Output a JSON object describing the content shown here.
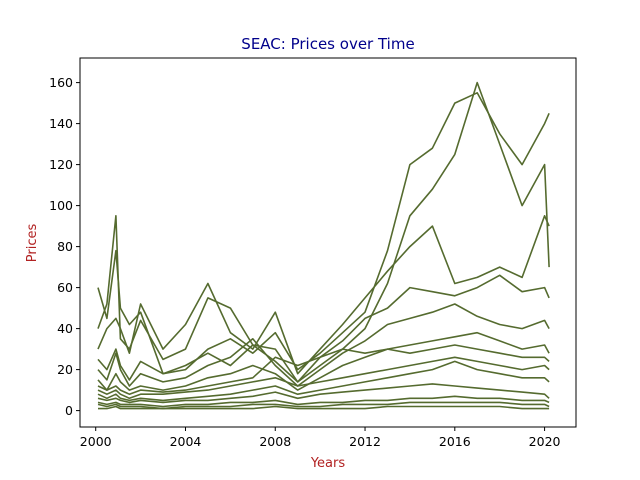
{
  "chart_data": {
    "type": "line",
    "title": "SEAC: Prices over Time",
    "xlabel": "Years",
    "ylabel": "Prices",
    "xlim": [
      1999.3,
      2021.4
    ],
    "ylim": [
      -8,
      172
    ],
    "x_ticks": [
      2000,
      2004,
      2008,
      2012,
      2016,
      2020
    ],
    "y_ticks": [
      0,
      20,
      40,
      60,
      80,
      100,
      120,
      140,
      160
    ],
    "grid": false,
    "legend": "none",
    "colors": {
      "line": "#556b2f",
      "title": "#00008b",
      "axis_label": "#b22222"
    },
    "series": [
      {
        "x": [
          2000.1,
          2000.5,
          2000.9,
          2001.1,
          2001.5,
          2002,
          2003,
          2004,
          2005,
          2006,
          2007,
          2008,
          2009,
          2010,
          2011,
          2012,
          2013,
          2014,
          2015,
          2016,
          2017,
          2018,
          2019,
          2020,
          2020.2
        ],
        "y": [
          60,
          45,
          78,
          50,
          42,
          48,
          18,
          20,
          30,
          35,
          28,
          38,
          20,
          28,
          38,
          48,
          78,
          120,
          128,
          150,
          155,
          135,
          120,
          140,
          145
        ]
      },
      {
        "x": [
          2000.1,
          2000.5,
          2000.9,
          2001.1,
          2001.5,
          2002,
          2003,
          2004,
          2005,
          2006,
          2007,
          2008,
          2009,
          2010,
          2011,
          2012,
          2013,
          2014,
          2015,
          2016,
          2017,
          2018,
          2019,
          2020,
          2020.2
        ],
        "y": [
          40,
          52,
          95,
          35,
          30,
          44,
          25,
          30,
          55,
          50,
          32,
          30,
          14,
          22,
          30,
          40,
          62,
          95,
          108,
          125,
          160,
          130,
          100,
          120,
          70
        ]
      },
      {
        "x": [
          2000.1,
          2000.5,
          2000.9,
          2001.1,
          2001.5,
          2002,
          2003,
          2004,
          2005,
          2006,
          2007,
          2008,
          2009,
          2010,
          2011,
          2012,
          2013,
          2014,
          2015,
          2016,
          2017,
          2018,
          2019,
          2020,
          2020.2
        ],
        "y": [
          30,
          40,
          45,
          40,
          28,
          52,
          30,
          42,
          62,
          38,
          30,
          48,
          18,
          30,
          42,
          55,
          68,
          80,
          90,
          62,
          65,
          70,
          65,
          95,
          90
        ]
      },
      {
        "x": [
          2000.1,
          2000.5,
          2000.9,
          2001.1,
          2001.5,
          2002,
          2003,
          2004,
          2005,
          2006,
          2007,
          2008,
          2009,
          2010,
          2011,
          2012,
          2013,
          2014,
          2015,
          2016,
          2017,
          2018,
          2019,
          2020,
          2020.2
        ],
        "y": [
          25,
          20,
          30,
          22,
          15,
          24,
          18,
          22,
          28,
          22,
          32,
          24,
          14,
          26,
          34,
          45,
          50,
          60,
          58,
          56,
          60,
          66,
          58,
          60,
          55
        ]
      },
      {
        "x": [
          2000.1,
          2000.5,
          2000.9,
          2001.1,
          2001.5,
          2002,
          2003,
          2004,
          2005,
          2006,
          2007,
          2008,
          2009,
          2010,
          2011,
          2012,
          2013,
          2014,
          2015,
          2016,
          2017,
          2018,
          2019,
          2020,
          2020.2
        ],
        "y": [
          20,
          15,
          28,
          20,
          12,
          18,
          14,
          16,
          22,
          26,
          35,
          22,
          12,
          20,
          28,
          34,
          42,
          45,
          48,
          52,
          46,
          42,
          40,
          44,
          40
        ]
      },
      {
        "x": [
          2000.1,
          2000.5,
          2000.9,
          2001.1,
          2001.5,
          2002,
          2003,
          2004,
          2005,
          2006,
          2007,
          2008,
          2009,
          2010,
          2011,
          2012,
          2013,
          2014,
          2015,
          2016,
          2017,
          2018,
          2019,
          2020,
          2020.2
        ],
        "y": [
          15,
          10,
          18,
          14,
          10,
          12,
          10,
          12,
          16,
          18,
          22,
          18,
          10,
          16,
          22,
          26,
          30,
          32,
          34,
          36,
          38,
          34,
          30,
          32,
          28
        ]
      },
      {
        "x": [
          2000.1,
          2000.5,
          2000.9,
          2001.1,
          2001.5,
          2002,
          2003,
          2004,
          2005,
          2006,
          2007,
          2008,
          2009,
          2010,
          2011,
          2012,
          2013,
          2014,
          2015,
          2016,
          2017,
          2018,
          2019,
          2020,
          2020.2
        ],
        "y": [
          12,
          10,
          12,
          10,
          8,
          10,
          9,
          10,
          12,
          14,
          16,
          26,
          22,
          26,
          30,
          28,
          30,
          28,
          30,
          32,
          30,
          28,
          26,
          26,
          24
        ]
      },
      {
        "x": [
          2000.1,
          2000.5,
          2000.9,
          2001.1,
          2001.5,
          2002,
          2003,
          2004,
          2005,
          2006,
          2007,
          2008,
          2009,
          2010,
          2011,
          2012,
          2013,
          2014,
          2015,
          2016,
          2017,
          2018,
          2019,
          2020,
          2020.2
        ],
        "y": [
          10,
          8,
          10,
          8,
          6,
          8,
          8,
          9,
          10,
          12,
          14,
          16,
          12,
          14,
          16,
          18,
          20,
          22,
          24,
          26,
          24,
          22,
          20,
          22,
          20
        ]
      },
      {
        "x": [
          2000.1,
          2000.5,
          2000.9,
          2001.1,
          2001.5,
          2002,
          2003,
          2004,
          2005,
          2006,
          2007,
          2008,
          2009,
          2010,
          2011,
          2012,
          2013,
          2014,
          2015,
          2016,
          2017,
          2018,
          2019,
          2020,
          2020.2
        ],
        "y": [
          8,
          6,
          8,
          6,
          5,
          6,
          5,
          6,
          7,
          8,
          10,
          12,
          8,
          10,
          12,
          14,
          16,
          18,
          20,
          24,
          20,
          18,
          16,
          16,
          14
        ]
      },
      {
        "x": [
          2000.1,
          2000.5,
          2000.9,
          2001.1,
          2001.5,
          2002,
          2003,
          2004,
          2005,
          2006,
          2007,
          2008,
          2009,
          2010,
          2011,
          2012,
          2013,
          2014,
          2015,
          2016,
          2017,
          2018,
          2019,
          2020,
          2020.2
        ],
        "y": [
          6,
          5,
          6,
          5,
          4,
          5,
          4,
          5,
          5,
          6,
          7,
          9,
          6,
          8,
          9,
          10,
          11,
          12,
          13,
          12,
          11,
          10,
          9,
          8,
          6
        ]
      },
      {
        "x": [
          2000.1,
          2000.5,
          2000.9,
          2001.1,
          2001.5,
          2002,
          2003,
          2004,
          2005,
          2006,
          2007,
          2008,
          2009,
          2010,
          2011,
          2012,
          2013,
          2014,
          2015,
          2016,
          2017,
          2018,
          2019,
          2020,
          2020.2
        ],
        "y": [
          4,
          3,
          4,
          3,
          3,
          3,
          2,
          3,
          3,
          4,
          4,
          5,
          3,
          4,
          4,
          5,
          5,
          6,
          6,
          7,
          6,
          6,
          5,
          5,
          4
        ]
      },
      {
        "x": [
          2000.1,
          2000.5,
          2000.9,
          2001.1,
          2001.5,
          2002,
          2003,
          2004,
          2005,
          2006,
          2007,
          2008,
          2009,
          2010,
          2011,
          2012,
          2013,
          2014,
          2015,
          2016,
          2017,
          2018,
          2019,
          2020,
          2020.2
        ],
        "y": [
          3,
          2,
          3,
          2,
          2,
          2,
          1,
          2,
          2,
          2,
          3,
          3,
          2,
          2,
          3,
          3,
          3,
          4,
          4,
          4,
          4,
          4,
          3,
          3,
          2
        ]
      },
      {
        "x": [
          2000.1,
          2000.5,
          2000.9,
          2001.1,
          2001.5,
          2002,
          2003,
          2004,
          2005,
          2006,
          2007,
          2008,
          2009,
          2010,
          2011,
          2012,
          2013,
          2014,
          2015,
          2016,
          2017,
          2018,
          2019,
          2020,
          2020.2
        ],
        "y": [
          1,
          1,
          2,
          1,
          1,
          1,
          1,
          1,
          1,
          1,
          1,
          2,
          1,
          1,
          1,
          1,
          2,
          2,
          2,
          2,
          2,
          2,
          1,
          1,
          1
        ]
      }
    ]
  }
}
